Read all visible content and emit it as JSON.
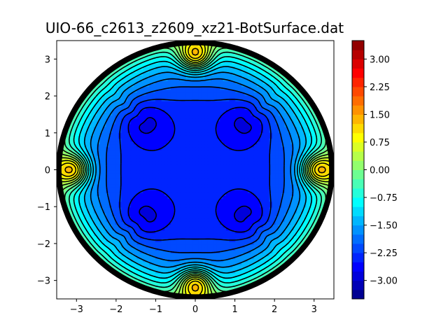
{
  "chart_data": {
    "type": "heatmap",
    "subtype": "filled-contour",
    "title": "UIO-66_c2613_z2609_xz21-BotSurface.dat",
    "xlabel": "",
    "ylabel": "",
    "xlim": [
      -3.5,
      3.5
    ],
    "ylim": [
      -3.5,
      3.5
    ],
    "xticks": [
      -3,
      -2,
      -1,
      0,
      1,
      2,
      3
    ],
    "yticks": [
      -3,
      -2,
      -1,
      0,
      1,
      2,
      3
    ],
    "grid": false,
    "colormap": "jet",
    "colorbar": {
      "vmin": -3.5,
      "vmax": 3.5,
      "ticks": [
        -3.0,
        -2.25,
        -1.5,
        -0.75,
        0.0,
        0.75,
        1.5,
        2.25,
        3.0
      ],
      "tick_labels": [
        "−3.00",
        "−2.25",
        "−1.50",
        "−0.75",
        "0.00",
        "0.75",
        "1.50",
        "2.25",
        "3.00"
      ],
      "levels": 28
    },
    "field": {
      "domain": "disk",
      "radius": 3.45,
      "features": [
        {
          "kind": "plateau",
          "center": [
            0,
            0
          ],
          "value": -2.4
        },
        {
          "kind": "minimum",
          "center": [
            -1.3,
            1.3
          ],
          "value": -2.8
        },
        {
          "kind": "minimum",
          "center": [
            1.3,
            1.3
          ],
          "value": -2.8
        },
        {
          "kind": "minimum",
          "center": [
            -1.3,
            -1.3
          ],
          "value": -2.8
        },
        {
          "kind": "minimum",
          "center": [
            1.3,
            -1.3
          ],
          "value": -2.8
        },
        {
          "kind": "maximum",
          "center": [
            0,
            3.1
          ],
          "value": 0.7
        },
        {
          "kind": "maximum",
          "center": [
            0,
            -3.1
          ],
          "value": 0.7
        },
        {
          "kind": "maximum",
          "center": [
            -3.1,
            0
          ],
          "value": 0.5
        },
        {
          "kind": "maximum",
          "center": [
            3.1,
            0
          ],
          "value": 0.5
        }
      ],
      "rim_value": -0.3
    }
  }
}
